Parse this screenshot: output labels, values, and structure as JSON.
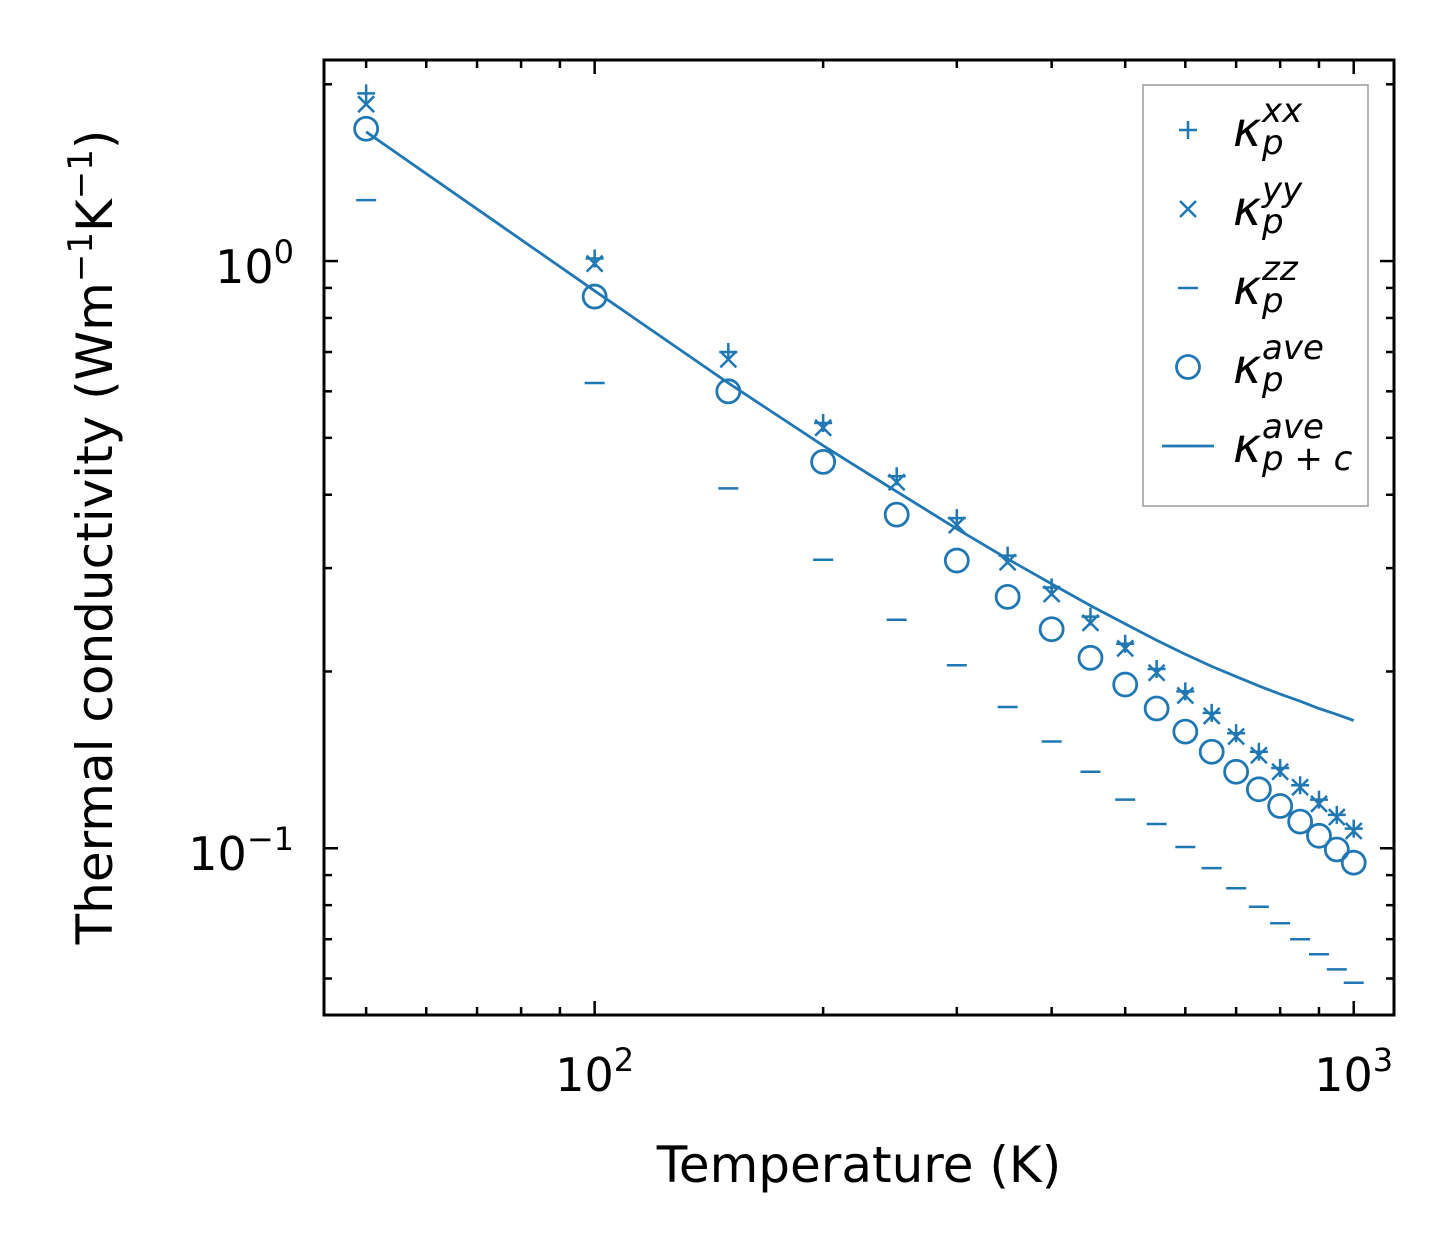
{
  "chart_data": {
    "type": "scatter",
    "title": "",
    "xlabel": "Temperature (K)",
    "ylabel": "Thermal conductivity (Wm$^{-1}$K$^{-1}$)",
    "ylabel_parts": {
      "prefix": "Thermal conductivity (Wm",
      "exp1": "−1",
      "mid": "K",
      "exp2": "−1",
      "suffix": ")"
    },
    "xscale": "log",
    "yscale": "log",
    "xlim": [
      44,
      1130
    ],
    "ylim": [
      0.052,
      2.2
    ],
    "xticks": [
      {
        "value": 100,
        "base": "10",
        "exp": "2"
      },
      {
        "value": 1000,
        "base": "10",
        "exp": "3"
      }
    ],
    "yticks": [
      {
        "value": 1.0,
        "base": "10",
        "exp": "0"
      },
      {
        "value": 0.1,
        "base": "10",
        "exp": "−1"
      }
    ],
    "x": [
      50,
      100,
      150,
      200,
      250,
      300,
      350,
      400,
      450,
      500,
      550,
      600,
      650,
      700,
      750,
      800,
      850,
      900,
      950,
      1000
    ],
    "series": [
      {
        "name": "kappa_p^xx",
        "legend_base": "κ",
        "legend_sub": "p",
        "legend_sup": "xx",
        "marker": "plus",
        "color": "#1f77b4",
        "values": [
          1.93,
          1.01,
          0.7,
          0.53,
          0.43,
          0.365,
          0.315,
          0.278,
          0.248,
          0.223,
          0.202,
          0.185,
          0.17,
          0.157,
          0.146,
          0.137,
          0.128,
          0.121,
          0.114,
          0.108
        ]
      },
      {
        "name": "kappa_p^yy",
        "legend_base": "κ",
        "legend_sub": "p",
        "legend_sup": "yy",
        "marker": "x",
        "color": "#1f77b4",
        "values": [
          1.85,
          0.99,
          0.68,
          0.52,
          0.42,
          0.355,
          0.307,
          0.271,
          0.242,
          0.219,
          0.199,
          0.182,
          0.168,
          0.155,
          0.144,
          0.135,
          0.127,
          0.119,
          0.113,
          0.107
        ]
      },
      {
        "name": "kappa_p^zz",
        "legend_base": "κ",
        "legend_sub": "p",
        "legend_sup": "zz",
        "marker": "hline",
        "color": "#1f77b4",
        "values": [
          1.27,
          0.62,
          0.41,
          0.31,
          0.245,
          0.205,
          0.174,
          0.152,
          0.135,
          0.121,
          0.11,
          0.1005,
          0.0925,
          0.0855,
          0.0795,
          0.0745,
          0.07,
          0.066,
          0.0622,
          0.059
        ]
      },
      {
        "name": "kappa_p^ave",
        "legend_base": "κ",
        "legend_sub": "p",
        "legend_sup": "ave",
        "marker": "circle",
        "color": "#1f77b4",
        "values": [
          1.68,
          0.87,
          0.6,
          0.455,
          0.37,
          0.309,
          0.268,
          0.236,
          0.211,
          0.19,
          0.173,
          0.158,
          0.146,
          0.135,
          0.126,
          0.118,
          0.111,
          0.105,
          0.0995,
          0.0945
        ]
      },
      {
        "name": "kappa_p+c^ave",
        "legend_base": "κ",
        "legend_sub": "p + c",
        "legend_sup": "ave",
        "marker": "line",
        "color": "#1f77b4",
        "values": [
          1.66,
          0.89,
          0.62,
          0.485,
          0.405,
          0.35,
          0.311,
          0.282,
          0.259,
          0.241,
          0.226,
          0.214,
          0.204,
          0.196,
          0.189,
          0.183,
          0.178,
          0.173,
          0.169,
          0.165
        ]
      }
    ],
    "legend": {
      "position": "top-right"
    }
  }
}
